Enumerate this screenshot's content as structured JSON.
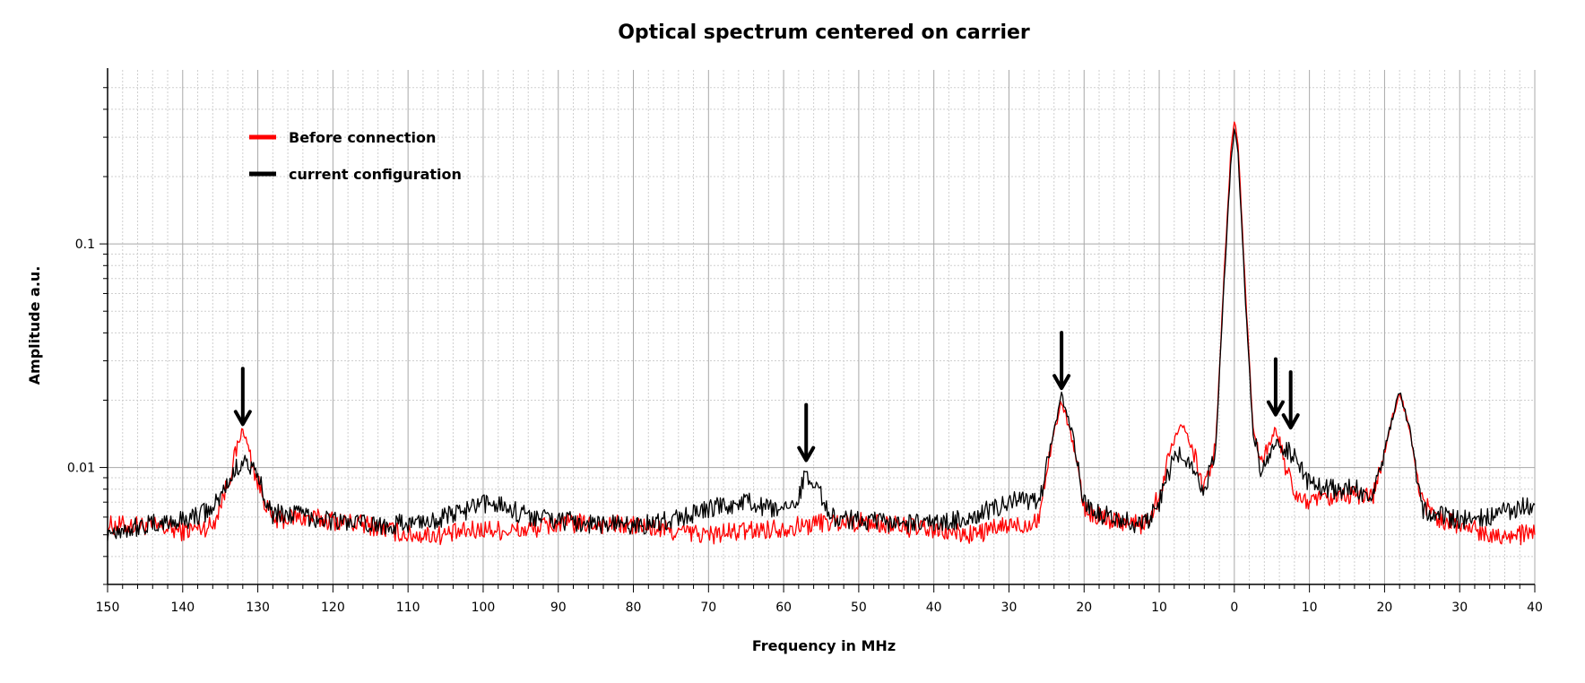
{
  "chart_data": {
    "type": "line",
    "title": "Optical spectrum centered on carrier",
    "xlabel": "Frequency in MHz",
    "ylabel": "Amplitude a.u.",
    "yscale": "log",
    "ylim": [
      0.003,
      0.6
    ],
    "y_ticks": [
      0.01,
      0.1
    ],
    "y_tick_labels": [
      "0.01",
      "0.1"
    ],
    "x_tick_labels": [
      "150",
      "140",
      "130",
      "120",
      "110",
      "100",
      "90",
      "80",
      "70",
      "60",
      "50",
      "40",
      "30",
      "20",
      "10",
      "0",
      "10",
      "20",
      "30",
      "40"
    ],
    "x_note": "Axis is centered on the carrier at 0 MHz; left side is negative offset (labels 150..10), right side positive offset (labels 10..40).",
    "x_range": [
      -150,
      40
    ],
    "grid": true,
    "legend_position": "top-left",
    "series": [
      {
        "name": "Before connection",
        "color": "#ff0000",
        "x": [
          -150,
          -145,
          -140,
          -136,
          -134,
          -132,
          -130,
          -128,
          -125,
          -120,
          -115,
          -110,
          -105,
          -100,
          -95,
          -90,
          -85,
          -80,
          -75,
          -70,
          -65,
          -60,
          -57,
          -55,
          -50,
          -45,
          -40,
          -35,
          -30,
          -28,
          -26,
          -24.5,
          -23,
          -21.5,
          -20,
          -18,
          -15,
          -12,
          -10,
          -8.5,
          -7,
          -5.5,
          -4,
          -2.5,
          -1.5,
          -0.5,
          0,
          0.5,
          1.5,
          2.5,
          3.5,
          4.5,
          5.5,
          6.5,
          8,
          10,
          13,
          16,
          18.5,
          20.5,
          22,
          23.5,
          25,
          27,
          30,
          35,
          40
        ],
        "values": [
          0.0055,
          0.0055,
          0.0052,
          0.0055,
          0.0085,
          0.015,
          0.0085,
          0.0058,
          0.006,
          0.0058,
          0.0055,
          0.005,
          0.005,
          0.0053,
          0.0052,
          0.0056,
          0.0056,
          0.0055,
          0.0052,
          0.005,
          0.0052,
          0.0054,
          0.0055,
          0.0057,
          0.0057,
          0.0055,
          0.0052,
          0.005,
          0.0055,
          0.0055,
          0.006,
          0.012,
          0.02,
          0.013,
          0.0065,
          0.006,
          0.0058,
          0.0055,
          0.0075,
          0.012,
          0.016,
          0.012,
          0.008,
          0.012,
          0.06,
          0.25,
          0.36,
          0.28,
          0.06,
          0.015,
          0.011,
          0.012,
          0.015,
          0.011,
          0.0075,
          0.007,
          0.0072,
          0.0075,
          0.0075,
          0.014,
          0.022,
          0.014,
          0.007,
          0.006,
          0.0055,
          0.005,
          0.005
        ]
      },
      {
        "name": "current configuration",
        "color": "#000000",
        "x": [
          -150,
          -145,
          -140,
          -136,
          -134,
          -132,
          -130,
          -128,
          -125,
          -120,
          -115,
          -110,
          -105,
          -100,
          -98,
          -95,
          -90,
          -85,
          -80,
          -75,
          -70,
          -65,
          -60,
          -58,
          -57,
          -55.5,
          -54,
          -50,
          -45,
          -40,
          -35,
          -30,
          -28,
          -26,
          -24.5,
          -23,
          -21.5,
          -20,
          -18,
          -15,
          -12,
          -10,
          -8.5,
          -7,
          -5.5,
          -4,
          -2.5,
          -1.5,
          -0.5,
          0,
          0.5,
          1.5,
          2.5,
          3.5,
          4.5,
          5.5,
          6.5,
          8,
          10,
          13,
          16,
          18.5,
          20.5,
          22,
          23.5,
          25,
          27,
          30,
          35,
          40
        ],
        "values": [
          0.0052,
          0.0055,
          0.0058,
          0.0065,
          0.0085,
          0.011,
          0.009,
          0.0062,
          0.0062,
          0.0058,
          0.0055,
          0.0056,
          0.006,
          0.0068,
          0.007,
          0.0062,
          0.0058,
          0.0056,
          0.0055,
          0.0058,
          0.0065,
          0.007,
          0.0062,
          0.0075,
          0.0095,
          0.0085,
          0.006,
          0.0058,
          0.0056,
          0.0056,
          0.006,
          0.007,
          0.0072,
          0.0068,
          0.012,
          0.021,
          0.014,
          0.007,
          0.0062,
          0.0058,
          0.0055,
          0.007,
          0.01,
          0.012,
          0.01,
          0.008,
          0.012,
          0.055,
          0.22,
          0.32,
          0.26,
          0.055,
          0.014,
          0.01,
          0.011,
          0.013,
          0.0125,
          0.011,
          0.0085,
          0.008,
          0.008,
          0.0075,
          0.014,
          0.022,
          0.014,
          0.0065,
          0.0062,
          0.0058,
          0.0062,
          0.0068
        ]
      }
    ],
    "annotations": [
      {
        "type": "arrow",
        "x": -132,
        "y": 0.0145,
        "direction": "down"
      },
      {
        "type": "arrow",
        "x": -57,
        "y": 0.01,
        "direction": "down"
      },
      {
        "type": "arrow",
        "x": -23,
        "y": 0.021,
        "direction": "down"
      },
      {
        "type": "arrow",
        "x": 5.5,
        "y": 0.016,
        "direction": "down"
      },
      {
        "type": "arrow",
        "x": 7.5,
        "y": 0.014,
        "direction": "down"
      }
    ]
  }
}
